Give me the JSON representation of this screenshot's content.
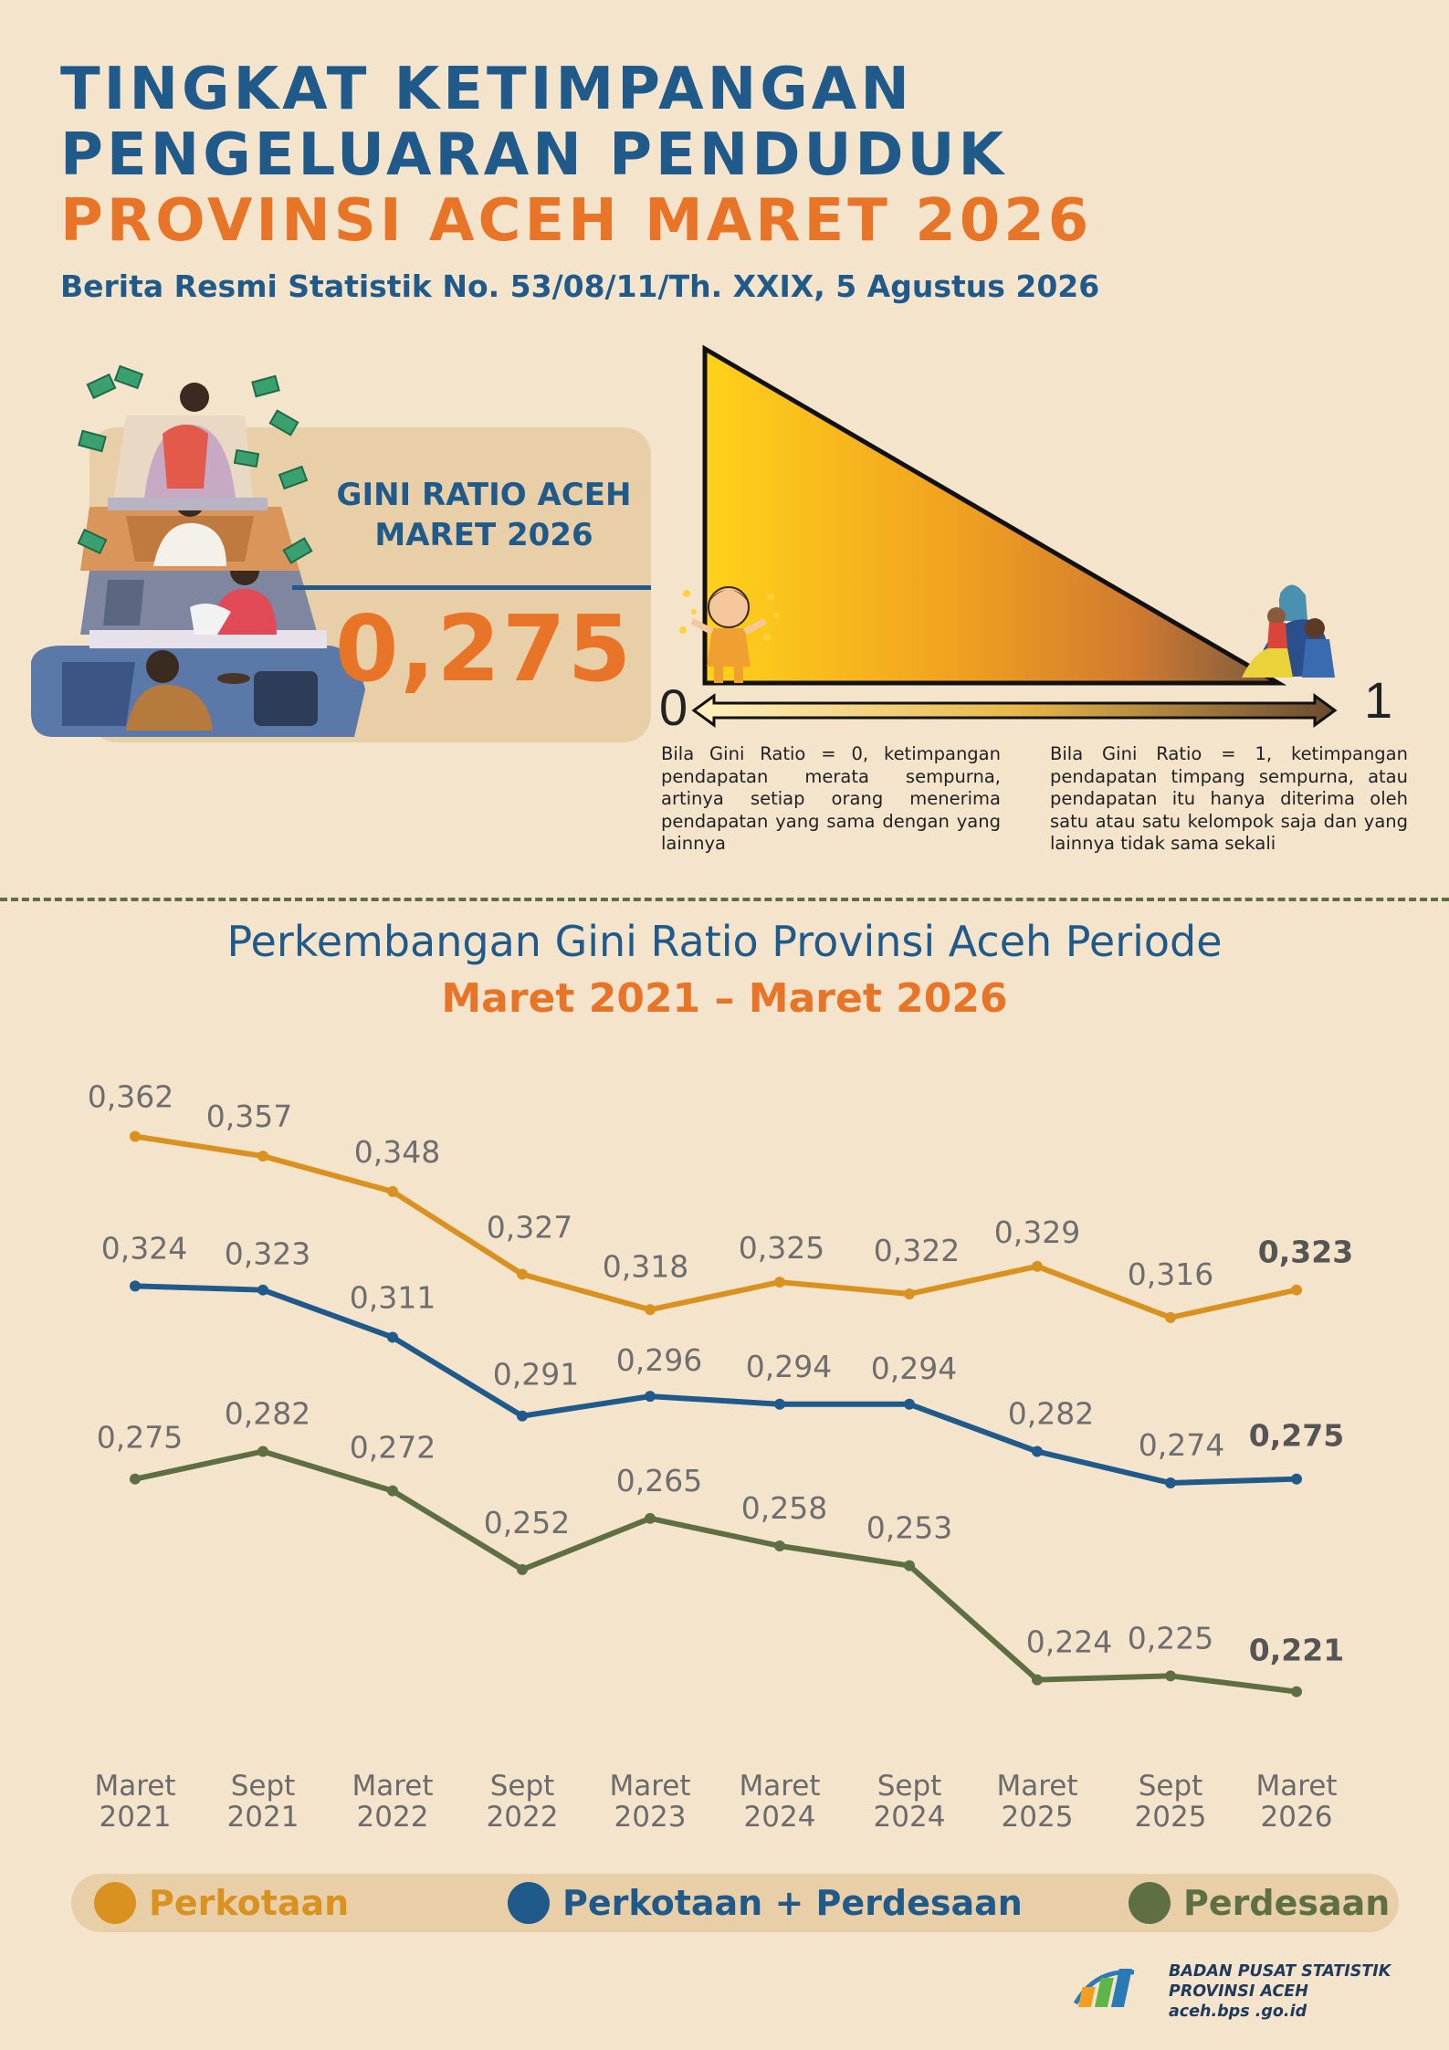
{
  "header": {
    "line1": "TINGKAT KETIMPANGAN",
    "line2": "PENGELUARAN PENDUDUK",
    "line3": "PROVINSI ACEH MARET 2026",
    "subtitle": "Berita Resmi Statistik No. 53/08/11/Th. XXIX, 5 Agustus 2026"
  },
  "gini": {
    "label_line1": "GINI RATIO ACEH",
    "label_line2": "MARET 2026",
    "value": "0,275"
  },
  "scale": {
    "zero": "0",
    "one": "1",
    "note_zero": "Bila Gini Ratio = 0, ketimpangan pendapatan merata sempurna, artinya setiap orang menerima pendapatan yang sama dengan yang lainnya",
    "note_one": "Bila Gini Ratio = 1, ketimpangan pendapatan timpang sempurna, atau pendapatan itu hanya diterima oleh satu atau satu kelompok saja dan yang lainnya tidak sama sekali"
  },
  "chart_title": {
    "line1": "Perkembangan Gini Ratio Provinsi Aceh Periode",
    "line2": "Maret 2021 – Maret 2026"
  },
  "chart_data": {
    "type": "line",
    "categories": [
      "Maret 2021",
      "Sept 2021",
      "Maret 2022",
      "Sept 2022",
      "Maret 2023",
      "Maret 2024",
      "Sept 2024",
      "Maret 2025",
      "Sept 2025",
      "Maret 2026"
    ],
    "series": [
      {
        "name": "Perkotaan",
        "color": "#d99220",
        "values": [
          0.362,
          0.357,
          0.348,
          0.327,
          0.318,
          0.325,
          0.322,
          0.329,
          0.316,
          0.323
        ]
      },
      {
        "name": "Perkotaan + Perdesaan",
        "color": "#1f5a8b",
        "values": [
          0.324,
          0.323,
          0.311,
          0.291,
          0.296,
          0.294,
          0.294,
          0.282,
          0.274,
          0.275
        ]
      },
      {
        "name": "Perdesaan",
        "color": "#5e6f44",
        "values": [
          0.275,
          0.282,
          0.272,
          0.252,
          0.265,
          0.258,
          0.253,
          0.224,
          0.225,
          0.221
        ]
      }
    ],
    "data_labels": [
      [
        "0,362",
        "0,357",
        "0,348",
        "0,327",
        "0,318",
        "0,325",
        "0,322",
        "0,329",
        "0,316",
        "0,323"
      ],
      [
        "0,324",
        "0,323",
        "0,311",
        "0,291",
        "0,296",
        "0,294",
        "0,294",
        "0,282",
        "0,274",
        "0,275"
      ],
      [
        "0,275",
        "0,282",
        "0,272",
        "0,252",
        "0,265",
        "0,258",
        "0,253",
        "0,224",
        "0,225",
        "0,221"
      ]
    ],
    "grid": false,
    "legend_position": "bottom"
  },
  "legend": {
    "item1": "Perkotaan",
    "item2": "Perkotaan + Perdesaan",
    "item3": "Perdesaan"
  },
  "footer": {
    "org1": "BADAN PUSAT STATISTIK",
    "org2": "PROVINSI ACEH",
    "url": "aceh.bps .go.id"
  }
}
